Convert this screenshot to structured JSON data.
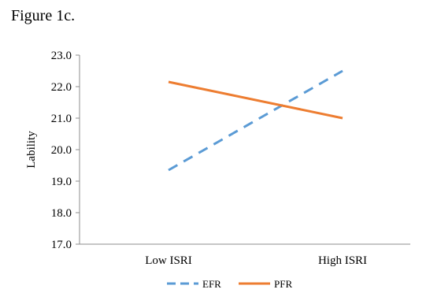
{
  "figure_caption": "Figure 1c.",
  "chart_data": {
    "type": "line",
    "categories": [
      "Low ISRI",
      "High ISRI"
    ],
    "series": [
      {
        "name": "EFR",
        "values": [
          19.35,
          22.5
        ],
        "color": "#5B9BD5",
        "style": "dashed"
      },
      {
        "name": "PFR",
        "values": [
          22.15,
          21.0
        ],
        "color": "#ED7D31",
        "style": "solid"
      }
    ],
    "ylabel": "Lability",
    "xlabel": "",
    "ylim": [
      17.0,
      23.0
    ],
    "yticks": [
      "17.0",
      "18.0",
      "19.0",
      "20.0",
      "21.0",
      "22.0",
      "23.0"
    ],
    "grid": false,
    "legend_position": "bottom"
  }
}
